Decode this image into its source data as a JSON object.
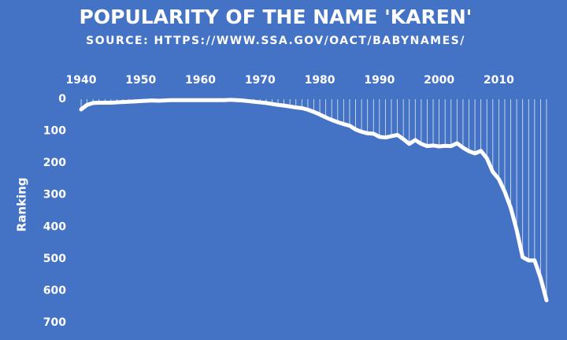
{
  "chart_data": {
    "type": "line",
    "title": "POPULARITY OF THE NAME 'KAREN'",
    "subtitle": "SOURCE: HTTPS://WWW.SSA.GOV/OACT/BABYNAMES/",
    "y_label": "Ranking",
    "x": [
      1940,
      1941,
      1942,
      1943,
      1944,
      1945,
      1946,
      1947,
      1948,
      1949,
      1950,
      1951,
      1952,
      1953,
      1954,
      1955,
      1956,
      1957,
      1958,
      1959,
      1960,
      1961,
      1962,
      1963,
      1964,
      1965,
      1966,
      1967,
      1968,
      1969,
      1970,
      1971,
      1972,
      1973,
      1974,
      1975,
      1976,
      1977,
      1978,
      1979,
      1980,
      1981,
      1982,
      1983,
      1984,
      1985,
      1986,
      1987,
      1988,
      1989,
      1990,
      1991,
      1992,
      1993,
      1994,
      1995,
      1996,
      1997,
      1998,
      1999,
      2000,
      2001,
      2002,
      2003,
      2004,
      2005,
      2006,
      2007,
      2008,
      2009,
      2010,
      2011,
      2012,
      2013,
      2014,
      2015,
      2016,
      2017,
      2018
    ],
    "series": [
      {
        "name": "Karen",
        "color": "#ffffff",
        "values": [
          32,
          18,
          12,
          11,
          11,
          11,
          10,
          9,
          8,
          7,
          6,
          5,
          4,
          5,
          4,
          3,
          3,
          3,
          3,
          3,
          3,
          3,
          3,
          3,
          3,
          2,
          3,
          4,
          6,
          8,
          10,
          12,
          15,
          18,
          20,
          23,
          26,
          28,
          33,
          40,
          48,
          57,
          65,
          72,
          78,
          83,
          95,
          102,
          107,
          108,
          118,
          120,
          116,
          112,
          125,
          140,
          128,
          140,
          147,
          145,
          148,
          146,
          147,
          138,
          152,
          163,
          170,
          162,
          185,
          228,
          250,
          290,
          340,
          410,
          495,
          505,
          505,
          560,
          630
        ]
      }
    ],
    "xlim": [
      1940,
      2018
    ],
    "xticks": [
      1940,
      1950,
      1960,
      1970,
      1980,
      1990,
      2000,
      2010
    ],
    "ylim": [
      0,
      700
    ],
    "yticks": [
      0,
      100,
      200,
      300,
      400,
      500,
      600,
      700
    ],
    "y_inverted": true,
    "drop_lines": true
  }
}
